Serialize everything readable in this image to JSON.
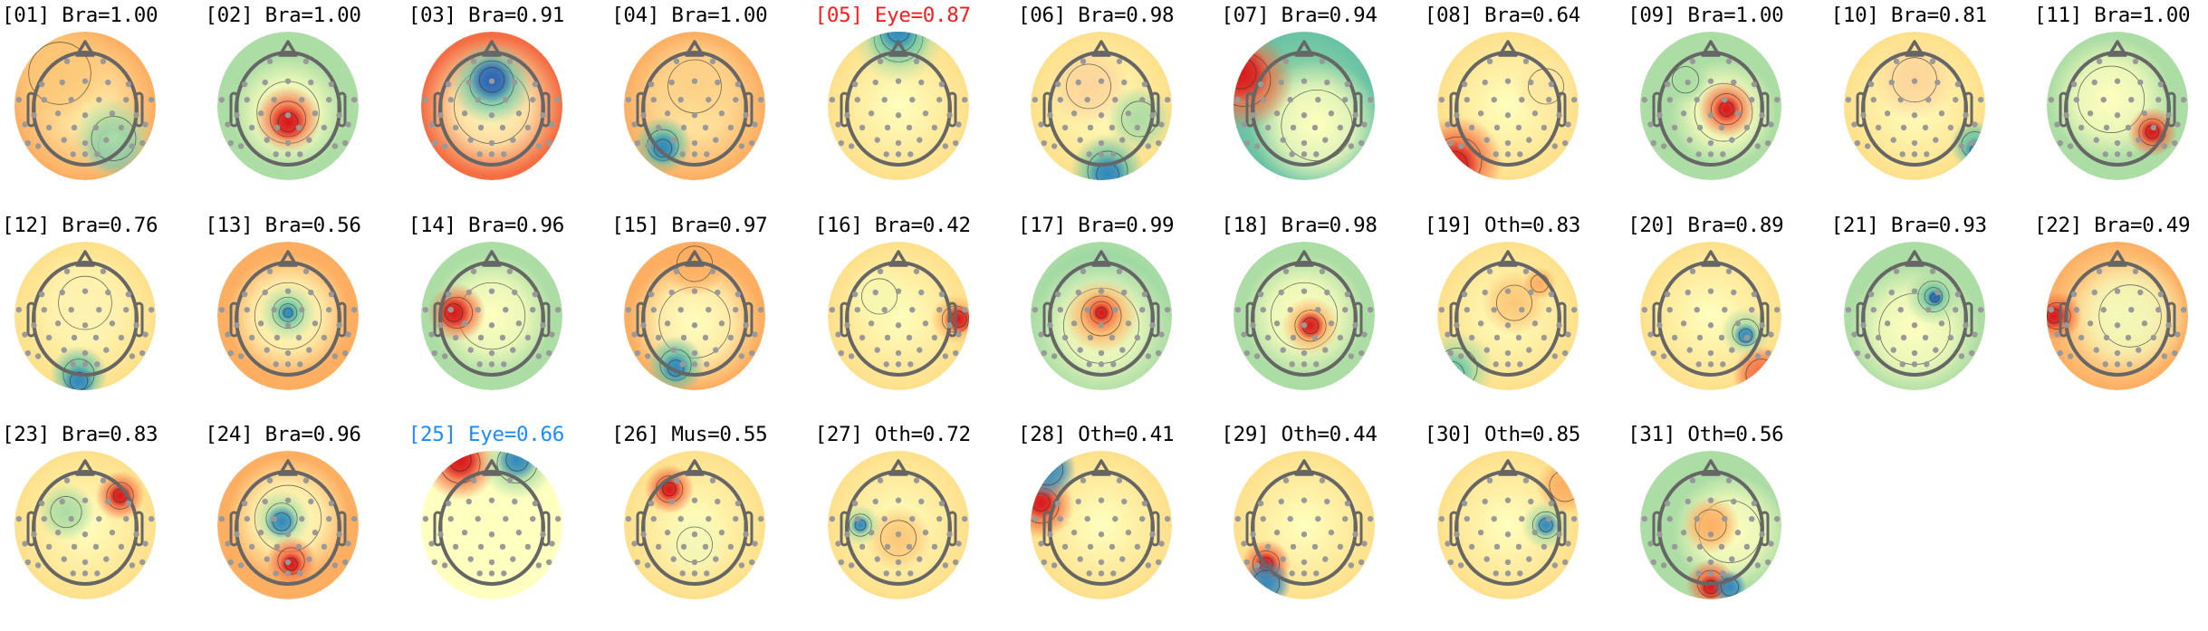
{
  "label_colors": {
    "default": "#000000",
    "eye_highlight_red": "#ff1a1a",
    "eye_highlight_blue": "#1a8cff"
  },
  "colormap": "spectral (red = positive, blue = negative)",
  "components": [
    {
      "label": "[01] Bra=1.00",
      "color": "#000000"
    },
    {
      "label": "[02] Bra=1.00",
      "color": "#000000"
    },
    {
      "label": "[03] Bra=0.91",
      "color": "#000000"
    },
    {
      "label": "[04] Bra=1.00",
      "color": "#000000"
    },
    {
      "label": "[05] Eye=0.87",
      "color": "#ff1a1a"
    },
    {
      "label": "[06] Bra=0.98",
      "color": "#000000"
    },
    {
      "label": "[07] Bra=0.94",
      "color": "#000000"
    },
    {
      "label": "[08] Bra=0.64",
      "color": "#000000"
    },
    {
      "label": "[09] Bra=1.00",
      "color": "#000000"
    },
    {
      "label": "[10] Bra=0.81",
      "color": "#000000"
    },
    {
      "label": "[11] Bra=1.00",
      "color": "#000000"
    },
    {
      "label": "[12] Bra=0.76",
      "color": "#000000"
    },
    {
      "label": "[13] Bra=0.56",
      "color": "#000000"
    },
    {
      "label": "[14] Bra=0.96",
      "color": "#000000"
    },
    {
      "label": "[15] Bra=0.97",
      "color": "#000000"
    },
    {
      "label": "[16] Bra=0.42",
      "color": "#000000"
    },
    {
      "label": "[17] Bra=0.99",
      "color": "#000000"
    },
    {
      "label": "[18] Bra=0.98",
      "color": "#000000"
    },
    {
      "label": "[19] Oth=0.83",
      "color": "#000000"
    },
    {
      "label": "[20] Bra=0.89",
      "color": "#000000"
    },
    {
      "label": "[21] Bra=0.93",
      "color": "#000000"
    },
    {
      "label": "[22] Bra=0.49",
      "color": "#000000"
    },
    {
      "label": "[23] Bra=0.83",
      "color": "#000000"
    },
    {
      "label": "[24] Bra=0.96",
      "color": "#000000"
    },
    {
      "label": "[25] Eye=0.66",
      "color": "#1a8cff"
    },
    {
      "label": "[26] Mus=0.55",
      "color": "#000000"
    },
    {
      "label": "[27] Oth=0.72",
      "color": "#000000"
    },
    {
      "label": "[28] Oth=0.41",
      "color": "#000000"
    },
    {
      "label": "[29] Oth=0.44",
      "color": "#000000"
    },
    {
      "label": "[30] Oth=0.85",
      "color": "#000000"
    },
    {
      "label": "[31] Oth=0.56",
      "color": "#000000"
    }
  ]
}
